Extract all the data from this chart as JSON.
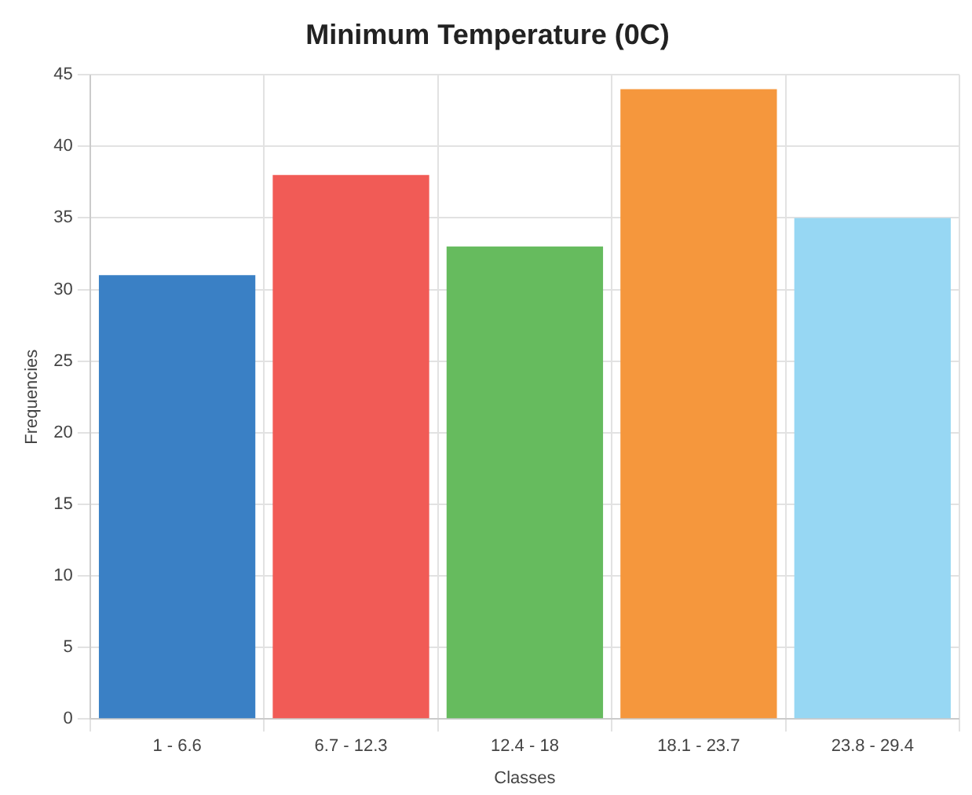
{
  "chart_data": {
    "type": "bar",
    "title": "Minimum Temperature (0C)",
    "xlabel": "Classes",
    "ylabel": "Frequencies",
    "categories": [
      "1 - 6.6",
      "6.7 - 12.3",
      "12.4 - 18",
      "18.1 - 23.7",
      "23.8 - 29.4"
    ],
    "values": [
      31,
      38,
      33,
      44,
      35
    ],
    "colors": [
      "#3a80c5",
      "#f15b56",
      "#66bb5e",
      "#f5973d",
      "#97d7f3"
    ],
    "ylim": [
      0,
      45
    ],
    "yticks": [
      0,
      5,
      10,
      15,
      20,
      25,
      30,
      35,
      40,
      45
    ],
    "grid": true
  }
}
